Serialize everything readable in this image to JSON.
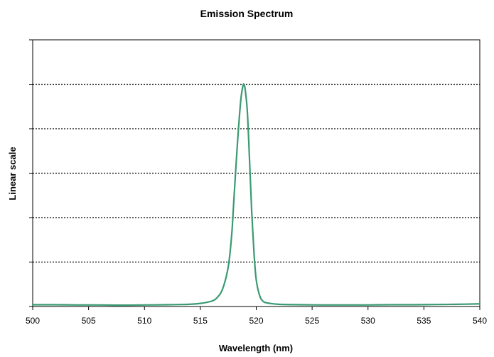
{
  "chart_data": {
    "type": "line",
    "title": "Emission Spectrum",
    "xlabel": "Wavelength (nm)",
    "ylabel": "Linear scale",
    "xlim": [
      500,
      540
    ],
    "ylim": [
      0,
      6
    ],
    "x_ticks": [
      500,
      505,
      510,
      515,
      520,
      525,
      530,
      535,
      540
    ],
    "x_tick_labels": [
      "500",
      "505",
      "510",
      "515",
      "520",
      "525",
      "530",
      "535",
      "540"
    ],
    "y_ticks": [
      0,
      1,
      2,
      3,
      4,
      5,
      6
    ],
    "y_tick_labels": [],
    "gridlines_y": [
      1,
      2,
      3,
      4,
      5
    ],
    "grid_style": "dotted horizontal",
    "legend": "none",
    "series": [
      {
        "name": "Emission",
        "color": "#3a9a73",
        "x": [
          500,
          502,
          504,
          506,
          508,
          510,
          512,
          514,
          515,
          516,
          516.5,
          517,
          517.5,
          517.8,
          518,
          518.3,
          518.6,
          518.8,
          518.9,
          519.0,
          519.2,
          519.4,
          519.6,
          519.8,
          520,
          520.3,
          520.6,
          521,
          522,
          524,
          526,
          528,
          530,
          532,
          534,
          536,
          538,
          540
        ],
        "values": [
          0.04,
          0.04,
          0.035,
          0.035,
          0.03,
          0.035,
          0.04,
          0.05,
          0.07,
          0.12,
          0.2,
          0.4,
          0.9,
          1.6,
          2.4,
          3.6,
          4.6,
          4.95,
          5.0,
          4.9,
          4.4,
          3.3,
          2.1,
          1.2,
          0.6,
          0.25,
          0.12,
          0.08,
          0.05,
          0.04,
          0.035,
          0.035,
          0.035,
          0.04,
          0.04,
          0.045,
          0.05,
          0.06
        ]
      }
    ]
  }
}
